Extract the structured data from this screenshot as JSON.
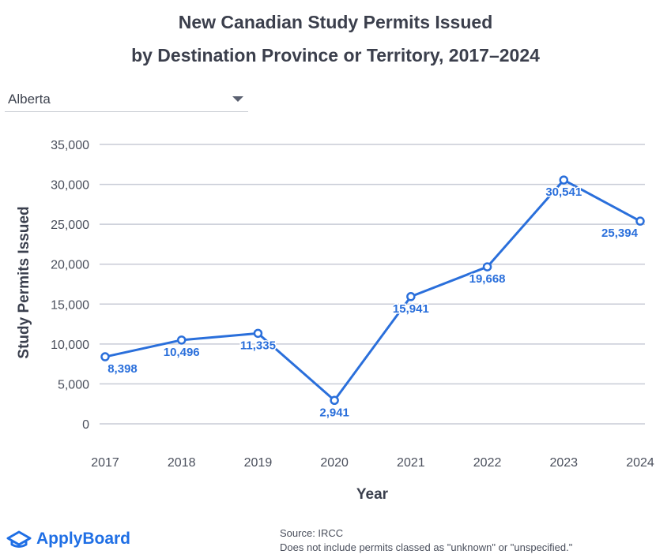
{
  "title_line1": "New Canadian Study Permits Issued",
  "title_line2": "by Destination Province or Territory, 2017–2024",
  "filter": {
    "selected": "Alberta"
  },
  "footer": {
    "logo_text": "ApplyBoard",
    "source": "Source: IRCC",
    "note": "Does not include permits classed as \"unknown\" or \"unspecified.\""
  },
  "colors": {
    "line": "#2a6fdb",
    "grid": "#c8cbd6",
    "label": "#2a6fdb",
    "text": "#3a3f4d"
  },
  "chart_data": {
    "type": "line",
    "xlabel": "Year",
    "ylabel": "Study Permits Issued",
    "ylim": [
      0,
      35000
    ],
    "yticks": [
      0,
      5000,
      10000,
      15000,
      20000,
      25000,
      30000,
      35000
    ],
    "ytick_labels": [
      "0",
      "5,000",
      "10,000",
      "15,000",
      "20,000",
      "25,000",
      "30,000",
      "35,000"
    ],
    "categories": [
      "2017",
      "2018",
      "2019",
      "2020",
      "2021",
      "2022",
      "2023",
      "2024"
    ],
    "series": [
      {
        "values": [
          8398,
          10496,
          11335,
          2941,
          15941,
          19668,
          30541,
          25394
        ],
        "labels": [
          "8,398",
          "10,496",
          "11,335",
          "2,941",
          "15,941",
          "19,668",
          "30,541",
          "25,394"
        ]
      }
    ],
    "grid": true
  }
}
